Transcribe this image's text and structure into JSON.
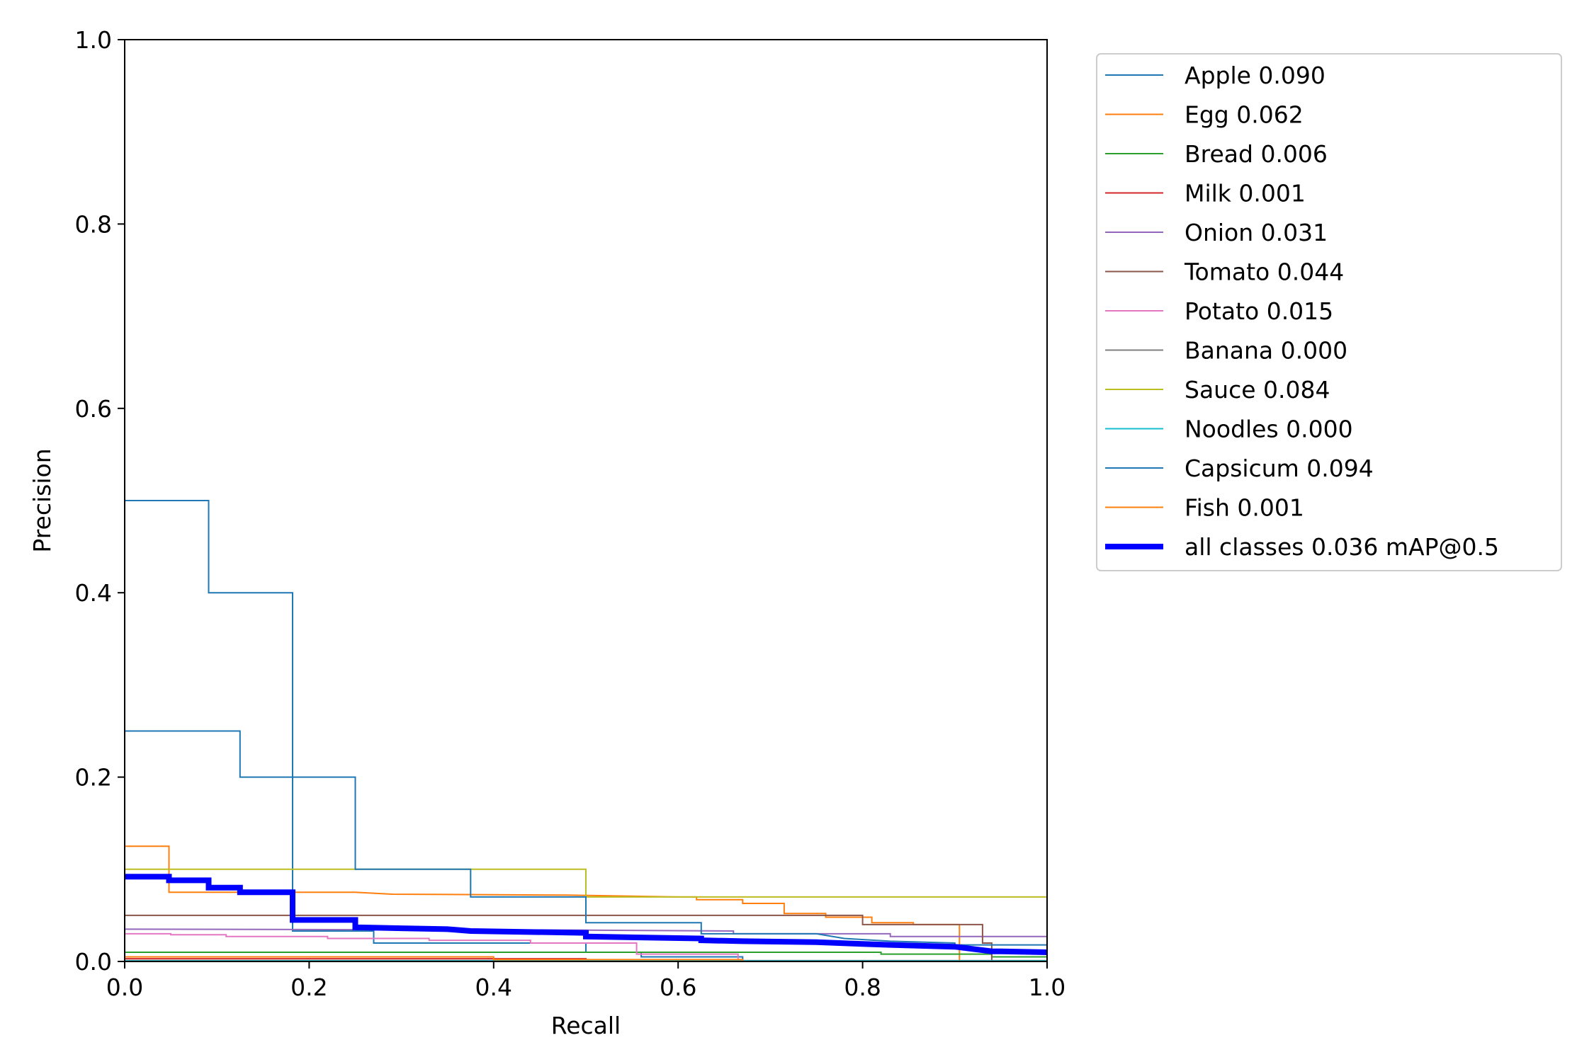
{
  "chart_data": {
    "type": "line",
    "xlabel": "Recall",
    "ylabel": "Precision",
    "xlim": [
      0.0,
      1.0
    ],
    "ylim": [
      0.0,
      1.0
    ],
    "xticks": [
      "0.0",
      "0.2",
      "0.4",
      "0.6",
      "0.8",
      "1.0"
    ],
    "yticks": [
      "0.0",
      "0.2",
      "0.4",
      "0.6",
      "0.8",
      "1.0"
    ],
    "grid": false,
    "legend_position": "outside-top-right",
    "series": [
      {
        "name": "Apple 0.090",
        "color": "#1f77b4",
        "width": 1,
        "points": [
          [
            0,
            0.5
          ],
          [
            0.091,
            0.5
          ],
          [
            0.091,
            0.4
          ],
          [
            0.182,
            0.4
          ],
          [
            0.182,
            0.033
          ],
          [
            0.27,
            0.033
          ],
          [
            0.27,
            0.02
          ],
          [
            0.5,
            0.02
          ],
          [
            0.5,
            0.01
          ],
          [
            0.56,
            0.01
          ],
          [
            0.56,
            0.005
          ],
          [
            0.67,
            0.005
          ],
          [
            0.67,
            0
          ]
        ]
      },
      {
        "name": "Egg 0.062",
        "color": "#ff7f0e",
        "width": 1,
        "points": [
          [
            0,
            0.125
          ],
          [
            0.048,
            0.125
          ],
          [
            0.048,
            0.075
          ],
          [
            0.25,
            0.075
          ],
          [
            0.29,
            0.073
          ],
          [
            0.48,
            0.072
          ],
          [
            0.6,
            0.07
          ],
          [
            0.62,
            0.07
          ],
          [
            0.62,
            0.067
          ],
          [
            0.67,
            0.067
          ],
          [
            0.67,
            0.063
          ],
          [
            0.715,
            0.063
          ],
          [
            0.715,
            0.052
          ],
          [
            0.76,
            0.052
          ],
          [
            0.76,
            0.048
          ],
          [
            0.81,
            0.048
          ],
          [
            0.81,
            0.042
          ],
          [
            0.855,
            0.042
          ],
          [
            0.855,
            0.04
          ],
          [
            0.905,
            0.04
          ],
          [
            0.905,
            0
          ]
        ]
      },
      {
        "name": "Bread 0.006",
        "color": "#2ca02c",
        "width": 1,
        "points": [
          [
            0,
            0.01
          ],
          [
            0.4,
            0.01
          ],
          [
            0.55,
            0.01
          ],
          [
            0.56,
            0.01
          ],
          [
            0.7,
            0.01
          ],
          [
            0.82,
            0.01
          ],
          [
            0.82,
            0.008
          ],
          [
            0.94,
            0.008
          ],
          [
            0.94,
            0.005
          ],
          [
            1.0,
            0.005
          ]
        ]
      },
      {
        "name": "Milk 0.001",
        "color": "#d62728",
        "width": 1,
        "points": [
          [
            0,
            0.003
          ],
          [
            0.5,
            0.003
          ],
          [
            0.5,
            0
          ]
        ]
      },
      {
        "name": "Onion 0.031",
        "color": "#9467bd",
        "width": 1,
        "points": [
          [
            0,
            0.035
          ],
          [
            0.5,
            0.034
          ],
          [
            0.66,
            0.033
          ],
          [
            0.66,
            0.03
          ],
          [
            0.83,
            0.03
          ],
          [
            0.83,
            0.027
          ],
          [
            1.0,
            0.027
          ]
        ]
      },
      {
        "name": "Tomato 0.044",
        "color": "#8c564b",
        "width": 1,
        "points": [
          [
            0,
            0.05
          ],
          [
            0.8,
            0.05
          ],
          [
            0.8,
            0.04
          ],
          [
            0.93,
            0.04
          ],
          [
            0.93,
            0.02
          ],
          [
            0.94,
            0.02
          ],
          [
            0.94,
            0
          ]
        ]
      },
      {
        "name": "Potato 0.015",
        "color": "#e377c2",
        "width": 1,
        "points": [
          [
            0,
            0.03
          ],
          [
            0.05,
            0.03
          ],
          [
            0.05,
            0.029
          ],
          [
            0.11,
            0.029
          ],
          [
            0.11,
            0.027
          ],
          [
            0.22,
            0.027
          ],
          [
            0.22,
            0.025
          ],
          [
            0.33,
            0.025
          ],
          [
            0.33,
            0.023
          ],
          [
            0.44,
            0.023
          ],
          [
            0.44,
            0.02
          ],
          [
            0.555,
            0.02
          ],
          [
            0.555,
            0.008
          ],
          [
            0.665,
            0.008
          ],
          [
            0.665,
            0
          ]
        ]
      },
      {
        "name": "Banana 0.000",
        "color": "#7f7f7f",
        "width": 1,
        "points": [
          [
            0,
            0.001
          ],
          [
            1.0,
            0.001
          ]
        ]
      },
      {
        "name": "Sauce 0.084",
        "color": "#bcbd22",
        "width": 1,
        "points": [
          [
            0,
            0.1
          ],
          [
            0.5,
            0.1
          ],
          [
            0.5,
            0.07
          ],
          [
            1.0,
            0.07
          ],
          [
            1.0,
            0.01
          ]
        ]
      },
      {
        "name": "Noodles 0.000",
        "color": "#17becf",
        "width": 1,
        "points": [
          [
            0,
            0.0005
          ],
          [
            1.0,
            0.0005
          ]
        ]
      },
      {
        "name": "Capsicum 0.094",
        "color": "#1f77b4",
        "width": 1,
        "points": [
          [
            0,
            0.25
          ],
          [
            0.125,
            0.25
          ],
          [
            0.125,
            0.2
          ],
          [
            0.25,
            0.2
          ],
          [
            0.25,
            0.1
          ],
          [
            0.375,
            0.1
          ],
          [
            0.375,
            0.07
          ],
          [
            0.5,
            0.07
          ],
          [
            0.5,
            0.042
          ],
          [
            0.625,
            0.042
          ],
          [
            0.625,
            0.03
          ],
          [
            0.75,
            0.03
          ],
          [
            0.78,
            0.025
          ],
          [
            0.83,
            0.022
          ],
          [
            0.9,
            0.02
          ],
          [
            0.9,
            0.018
          ],
          [
            1.0,
            0.018
          ]
        ]
      },
      {
        "name": "Fish 0.001",
        "color": "#ff7f0e",
        "width": 1,
        "points": [
          [
            0,
            0.005
          ],
          [
            0.4,
            0.005
          ],
          [
            0.4,
            0.002
          ],
          [
            0.67,
            0.002
          ],
          [
            0.67,
            0
          ]
        ]
      },
      {
        "name": "all classes 0.036 mAP@0.5",
        "color": "#0000ff",
        "width": 4,
        "points": [
          [
            0,
            0.092
          ],
          [
            0.048,
            0.092
          ],
          [
            0.048,
            0.088
          ],
          [
            0.091,
            0.088
          ],
          [
            0.091,
            0.08
          ],
          [
            0.125,
            0.08
          ],
          [
            0.125,
            0.075
          ],
          [
            0.182,
            0.075
          ],
          [
            0.182,
            0.045
          ],
          [
            0.25,
            0.045
          ],
          [
            0.25,
            0.037
          ],
          [
            0.3,
            0.036
          ],
          [
            0.35,
            0.035
          ],
          [
            0.375,
            0.033
          ],
          [
            0.5,
            0.031
          ],
          [
            0.5,
            0.027
          ],
          [
            0.625,
            0.025
          ],
          [
            0.625,
            0.023
          ],
          [
            0.67,
            0.022
          ],
          [
            0.75,
            0.021
          ],
          [
            0.8,
            0.019
          ],
          [
            0.83,
            0.018
          ],
          [
            0.9,
            0.016
          ],
          [
            0.94,
            0.011
          ],
          [
            0.95,
            0.011
          ],
          [
            1.0,
            0.01
          ]
        ]
      }
    ]
  }
}
